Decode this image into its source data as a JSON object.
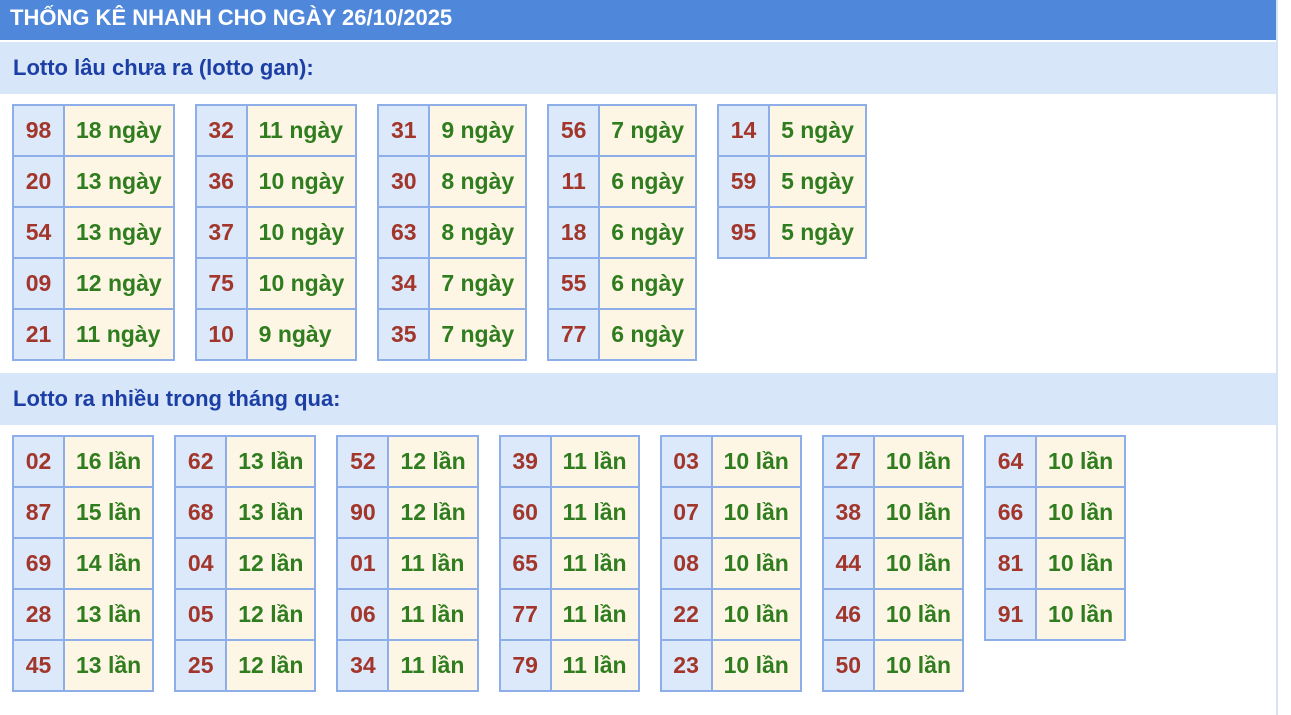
{
  "header": {
    "title": "THỐNG KÊ NHANH CHO NGÀY 26/10/2025"
  },
  "sections": [
    {
      "title": "Lotto lâu chưa ra (lotto gan):",
      "tables": [
        [
          [
            "98",
            "18 ngày"
          ],
          [
            "20",
            "13 ngày"
          ],
          [
            "54",
            "13 ngày"
          ],
          [
            "09",
            "12 ngày"
          ],
          [
            "21",
            "11 ngày"
          ]
        ],
        [
          [
            "32",
            "11 ngày"
          ],
          [
            "36",
            "10 ngày"
          ],
          [
            "37",
            "10 ngày"
          ],
          [
            "75",
            "10 ngày"
          ],
          [
            "10",
            "9 ngày"
          ]
        ],
        [
          [
            "31",
            "9 ngày"
          ],
          [
            "30",
            "8 ngày"
          ],
          [
            "63",
            "8 ngày"
          ],
          [
            "34",
            "7 ngày"
          ],
          [
            "35",
            "7 ngày"
          ]
        ],
        [
          [
            "56",
            "7 ngày"
          ],
          [
            "11",
            "6 ngày"
          ],
          [
            "18",
            "6 ngày"
          ],
          [
            "55",
            "6 ngày"
          ],
          [
            "77",
            "6 ngày"
          ]
        ],
        [
          [
            "14",
            "5 ngày"
          ],
          [
            "59",
            "5 ngày"
          ],
          [
            "95",
            "5 ngày"
          ]
        ]
      ]
    },
    {
      "title": "Lotto ra nhiều trong tháng qua:",
      "tables": [
        [
          [
            "02",
            "16 lần"
          ],
          [
            "87",
            "15 lần"
          ],
          [
            "69",
            "14 lần"
          ],
          [
            "28",
            "13 lần"
          ],
          [
            "45",
            "13 lần"
          ]
        ],
        [
          [
            "62",
            "13 lần"
          ],
          [
            "68",
            "13 lần"
          ],
          [
            "04",
            "12 lần"
          ],
          [
            "05",
            "12 lần"
          ],
          [
            "25",
            "12 lần"
          ]
        ],
        [
          [
            "52",
            "12 lần"
          ],
          [
            "90",
            "12 lần"
          ],
          [
            "01",
            "11 lần"
          ],
          [
            "06",
            "11 lần"
          ],
          [
            "34",
            "11 lần"
          ]
        ],
        [
          [
            "39",
            "11 lần"
          ],
          [
            "60",
            "11 lần"
          ],
          [
            "65",
            "11 lần"
          ],
          [
            "77",
            "11 lần"
          ],
          [
            "79",
            "11 lần"
          ]
        ],
        [
          [
            "03",
            "10 lần"
          ],
          [
            "07",
            "10 lần"
          ],
          [
            "08",
            "10 lần"
          ],
          [
            "22",
            "10 lần"
          ],
          [
            "23",
            "10 lần"
          ]
        ],
        [
          [
            "27",
            "10 lần"
          ],
          [
            "38",
            "10 lần"
          ],
          [
            "44",
            "10 lần"
          ],
          [
            "46",
            "10 lần"
          ],
          [
            "50",
            "10 lần"
          ]
        ],
        [
          [
            "64",
            "10 lần"
          ],
          [
            "66",
            "10 lần"
          ],
          [
            "81",
            "10 lần"
          ],
          [
            "91",
            "10 lần"
          ]
        ]
      ]
    }
  ]
}
